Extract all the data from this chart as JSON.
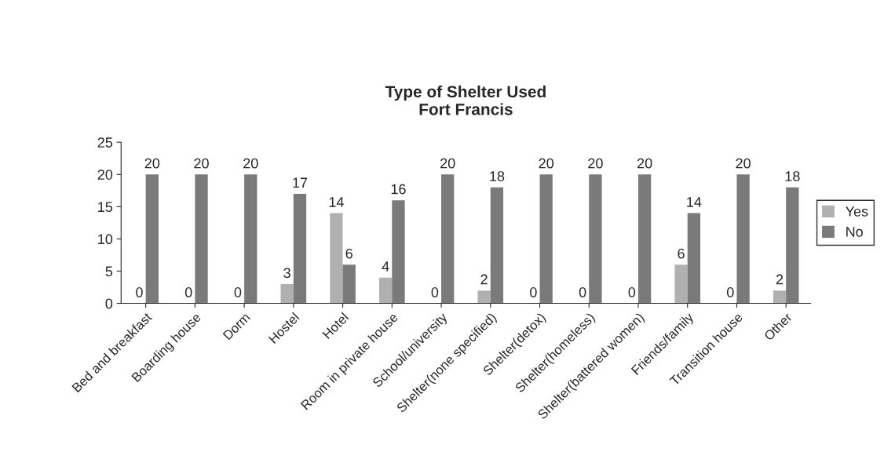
{
  "chart_data": {
    "type": "bar",
    "title": "Type of Shelter Used\nFort Francis",
    "categories": [
      "Bed and breakfast",
      "Boarding house",
      "Dorm",
      "Hostel",
      "Hotel",
      "Room in private house",
      "School/university",
      "Shelter(none specified)",
      "Shelter(detox)",
      "Shelter(homeless)",
      "Shelter(battered women)",
      "Friends/family",
      "Transition house",
      "Other"
    ],
    "series": [
      {
        "name": "Yes",
        "color": "#b0b0b0",
        "values": [
          0,
          0,
          0,
          3,
          14,
          4,
          0,
          2,
          0,
          0,
          0,
          6,
          0,
          2
        ]
      },
      {
        "name": "No",
        "color": "#7a7a7a",
        "values": [
          20,
          20,
          20,
          17,
          6,
          16,
          20,
          18,
          20,
          20,
          20,
          14,
          20,
          18
        ]
      }
    ],
    "ylim": [
      0,
      25
    ],
    "yticks": [
      0,
      5,
      10,
      15,
      20,
      25
    ],
    "data_labels": true,
    "legend": "right",
    "grid": false
  }
}
